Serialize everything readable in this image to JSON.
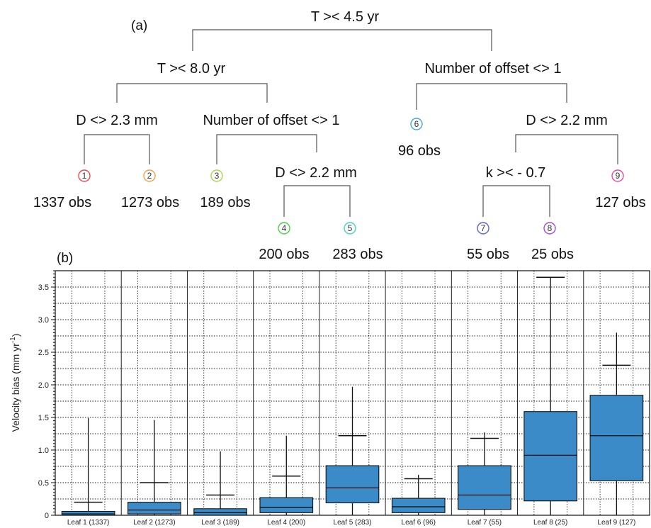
{
  "tree": {
    "panel_label": "(a)",
    "nodes": {
      "root": "T >< 4.5 yr",
      "l1": "T >< 8.0 yr",
      "r1": "Number of offset <> 1",
      "d1": "D <> 2.3 mm",
      "n1": "Number of offset <> 1",
      "d2": "D <> 2.2 mm",
      "d3": "D <> 2.2 mm",
      "k1": "k >< - 0.7"
    },
    "leaves": [
      {
        "num": "1",
        "obs": "1337 obs",
        "color": "#e8474f"
      },
      {
        "num": "2",
        "obs": "1273 obs",
        "color": "#f0a04a"
      },
      {
        "num": "3",
        "obs": "189 obs",
        "color": "#a6d94b"
      },
      {
        "num": "4",
        "obs": "200 obs",
        "color": "#4ccf4c"
      },
      {
        "num": "5",
        "obs": "283 obs",
        "color": "#3fd6c2"
      },
      {
        "num": "6",
        "obs": "96 obs",
        "color": "#4aa6e0"
      },
      {
        "num": "7",
        "obs": "55 obs",
        "color": "#5a62e0"
      },
      {
        "num": "8",
        "obs": "25 obs",
        "color": "#a24ae0"
      },
      {
        "num": "9",
        "obs": "127 obs",
        "color": "#e04aa4"
      }
    ]
  },
  "chart": {
    "panel_label": "(b)",
    "ylabel": "Velocity bias (mm yr",
    "ylabel_sup": "-1",
    "ylabel_close": ")",
    "yticks": [
      "0",
      "0.5",
      "1.0",
      "1.5",
      "2.0",
      "2.5",
      "3.0",
      "3.5"
    ],
    "box_color": "#3b8bc8"
  },
  "chart_data": {
    "type": "box",
    "categories": [
      "Leaf 1 (1337)",
      "Leaf 2 (1273)",
      "Leaf 3 (189)",
      "Leaf 4 (200)",
      "Leaf 5 (283)",
      "Leaf 6 (96)",
      "Leaf 7 (55)",
      "Leaf 8 (25)",
      "Leaf 9 (127)"
    ],
    "ylabel": "Velocity bias (mm yr-1)",
    "ylim": [
      0,
      3.75
    ],
    "grid": true,
    "boxes": [
      {
        "q1": 0.0,
        "median": 0.02,
        "q3": 0.06,
        "whisker_high": 1.49,
        "mean": 0.2
      },
      {
        "q1": 0.02,
        "median": 0.08,
        "q3": 0.2,
        "whisker_high": 1.46,
        "mean": 0.5
      },
      {
        "q1": 0.0,
        "median": 0.04,
        "q3": 0.1,
        "whisker_high": 0.98,
        "mean": 0.31
      },
      {
        "q1": 0.04,
        "median": 0.12,
        "q3": 0.27,
        "whisker_high": 1.22,
        "mean": 0.6
      },
      {
        "q1": 0.19,
        "median": 0.42,
        "q3": 0.76,
        "whisker_high": 1.97,
        "mean": 1.22
      },
      {
        "q1": 0.04,
        "median": 0.13,
        "q3": 0.26,
        "whisker_high": 0.62,
        "mean": 0.56
      },
      {
        "q1": 0.09,
        "median": 0.31,
        "q3": 0.76,
        "whisker_high": 1.27,
        "mean": 1.18
      },
      {
        "q1": 0.22,
        "median": 0.92,
        "q3": 1.59,
        "whisker_high": 3.65,
        "mean": 3.65
      },
      {
        "q1": 0.53,
        "median": 1.22,
        "q3": 1.84,
        "whisker_high": 2.8,
        "mean": 2.3
      }
    ]
  }
}
